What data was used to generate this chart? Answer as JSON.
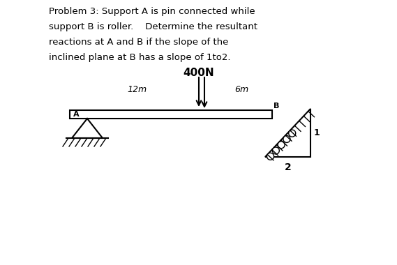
{
  "title_lines": [
    "Problem 3: Support A is pin connected while",
    "support B is roller.    Determine the resultant",
    "reactions at A and B if the slope of the",
    "inclined plane at B has a slope of 1to2."
  ],
  "force_label": "400N",
  "dim_left": "12m",
  "dim_right": "6m",
  "label_A": "A",
  "label_B": "B",
  "slope_label_1": "1",
  "slope_label_2": "2",
  "background_color": "#ffffff"
}
